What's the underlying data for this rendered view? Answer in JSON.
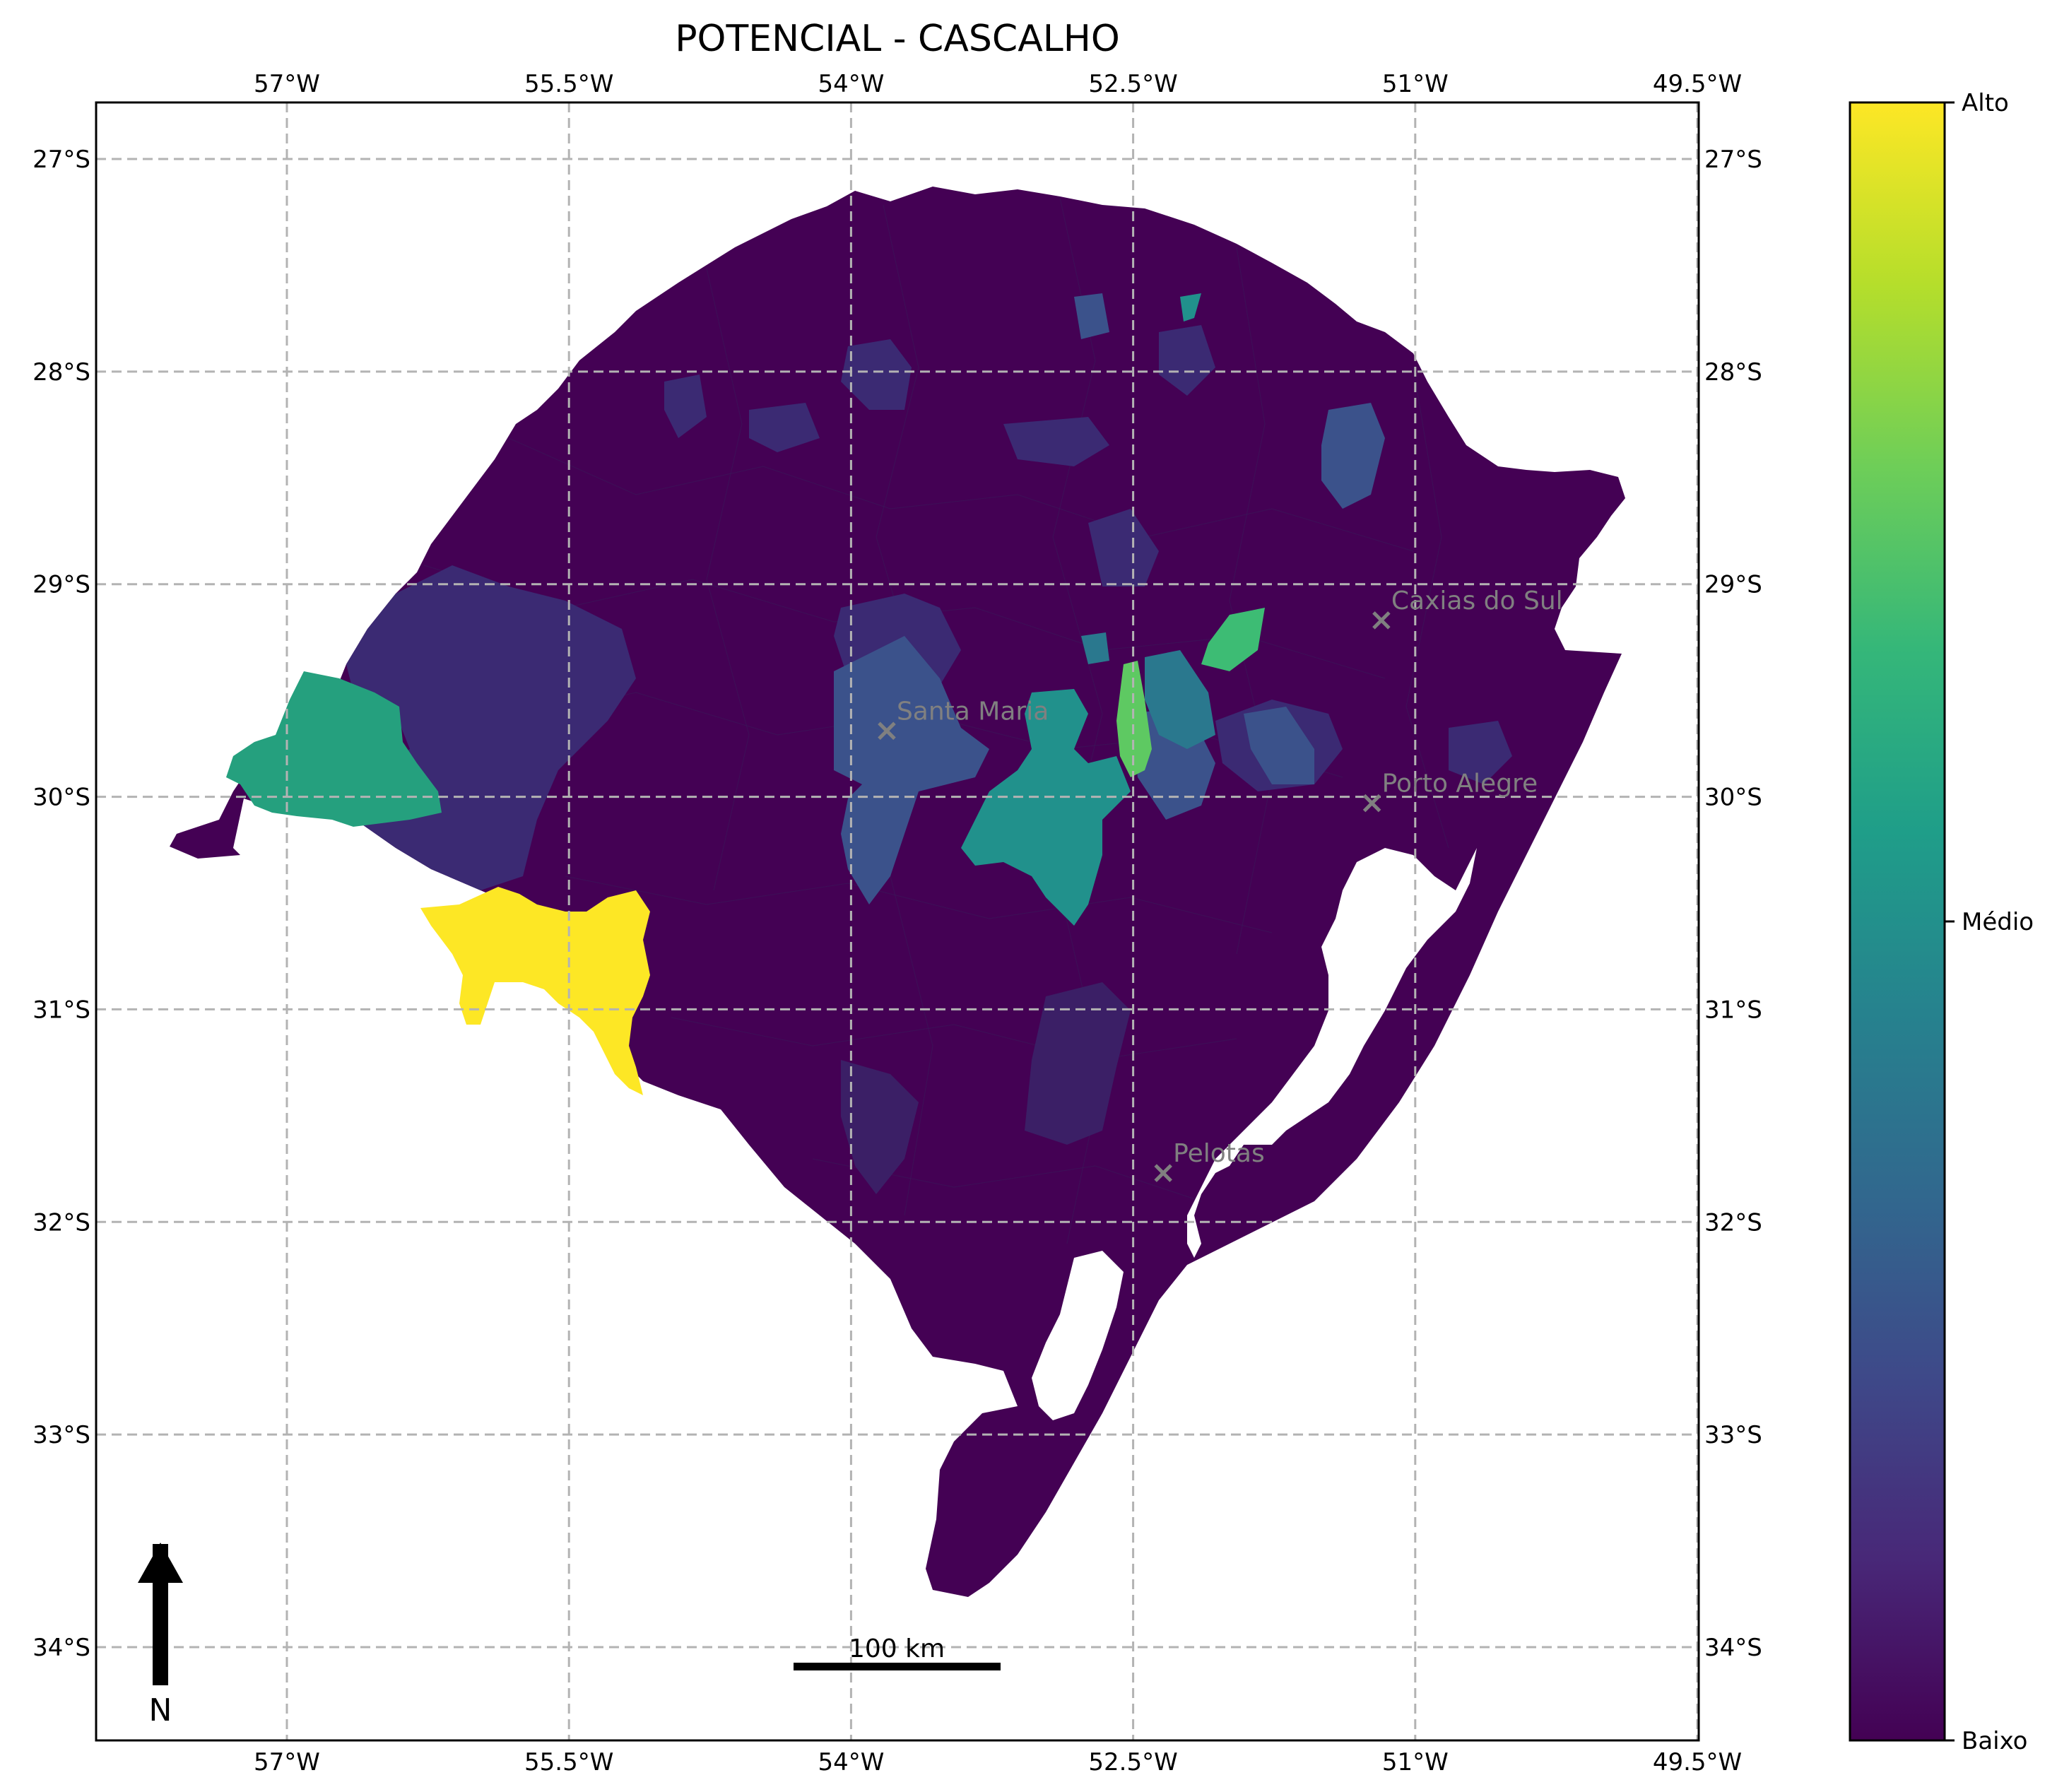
{
  "title": "POTENCIAL - CASCALHO",
  "map": {
    "lon_ticks": [
      {
        "value": -57.0,
        "label": "57°W"
      },
      {
        "value": -55.5,
        "label": "55.5°W"
      },
      {
        "value": -54.0,
        "label": "54°W"
      },
      {
        "value": -52.5,
        "label": "52.5°W"
      },
      {
        "value": -51.0,
        "label": "51°W"
      },
      {
        "value": -49.5,
        "label": "49.5°W"
      }
    ],
    "lat_ticks": [
      {
        "value": -27,
        "label": "27°S"
      },
      {
        "value": -28,
        "label": "28°S"
      },
      {
        "value": -29,
        "label": "29°S"
      },
      {
        "value": -30,
        "label": "30°S"
      },
      {
        "value": -31,
        "label": "31°S"
      },
      {
        "value": -32,
        "label": "32°S"
      },
      {
        "value": -33,
        "label": "33°S"
      },
      {
        "value": -34,
        "label": "34°S"
      }
    ],
    "cities": [
      {
        "name": "Caxias do Sul",
        "lon": -51.18,
        "lat": -29.17
      },
      {
        "name": "Santa Maria",
        "lon": -53.81,
        "lat": -29.69
      },
      {
        "name": "Porto Alegre",
        "lon": -51.23,
        "lat": -30.03
      },
      {
        "name": "Pelotas",
        "lon": -52.34,
        "lat": -31.77
      }
    ],
    "scale_bar": {
      "label": "100 km"
    },
    "north_arrow": {
      "label": "N",
      "icon": "north-arrow-icon"
    },
    "fill_colors": {
      "base": "#440154",
      "low": "#3b2a73",
      "low_mid": "#3b528b",
      "mid": "#21918c",
      "mid_high": "#25a07e",
      "high": "#5ec962",
      "top": "#fde725"
    }
  },
  "colorbar": {
    "labels": [
      {
        "value": 1.0,
        "label": "Alto"
      },
      {
        "value": 0.5,
        "label": "Médio"
      },
      {
        "value": 0.0,
        "label": "Baixo"
      }
    ],
    "colormap": "viridis",
    "stops": [
      "#440154",
      "#482878",
      "#3e4989",
      "#31688e",
      "#26828e",
      "#1f9e89",
      "#35b779",
      "#6ece58",
      "#b5de2b",
      "#fde725"
    ]
  }
}
